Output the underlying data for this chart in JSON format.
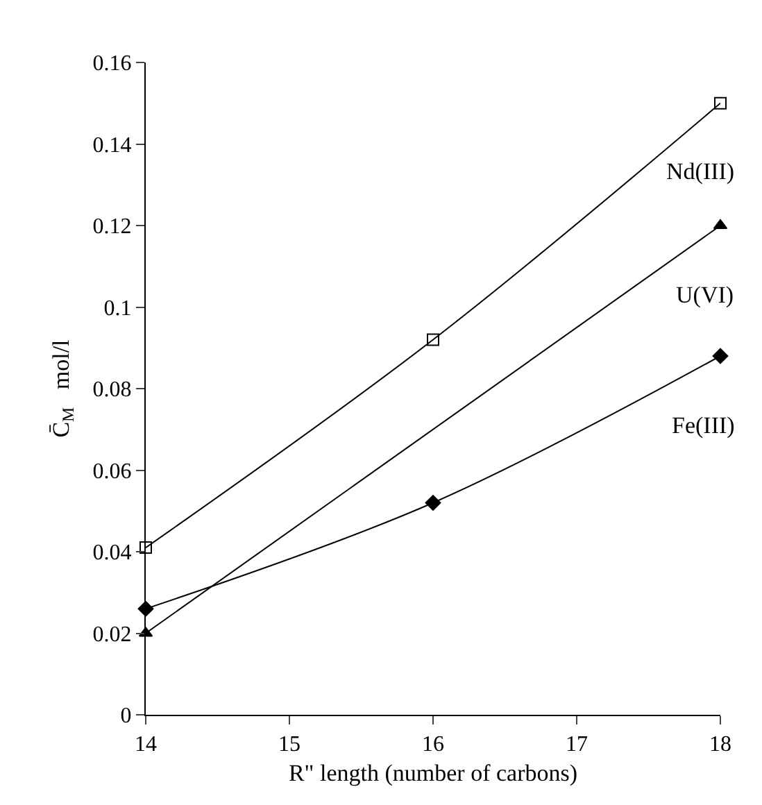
{
  "chart_data": {
    "type": "line",
    "xlabel": "R\" length (number of carbons)",
    "ylabel": "C̄$_{M}$   mol/l",
    "xlim": [
      14,
      18
    ],
    "xticks": [
      14,
      15,
      16,
      17,
      18
    ],
    "ylim": [
      0,
      0.16
    ],
    "yticks": [
      0,
      0.02,
      0.04,
      0.06,
      0.08,
      0.1,
      0.12,
      0.14,
      0.16
    ],
    "grid": false,
    "legend": false,
    "line_style": "solid",
    "series": [
      {
        "name": "Nd(III)",
        "color": "#000000",
        "marker": "square",
        "x": [
          14,
          16,
          18
        ],
        "values": [
          0.041,
          0.092,
          0.15
        ]
      },
      {
        "name": "U(VI)",
        "color": "#000000",
        "marker": "triangle",
        "x": [
          14,
          18
        ],
        "values": [
          0.02,
          0.12
        ]
      },
      {
        "name": "Fe(III)",
        "color": "#000000",
        "marker": "diamond",
        "x": [
          14,
          16,
          18
        ],
        "values": [
          0.026,
          0.052,
          0.088
        ]
      }
    ]
  }
}
